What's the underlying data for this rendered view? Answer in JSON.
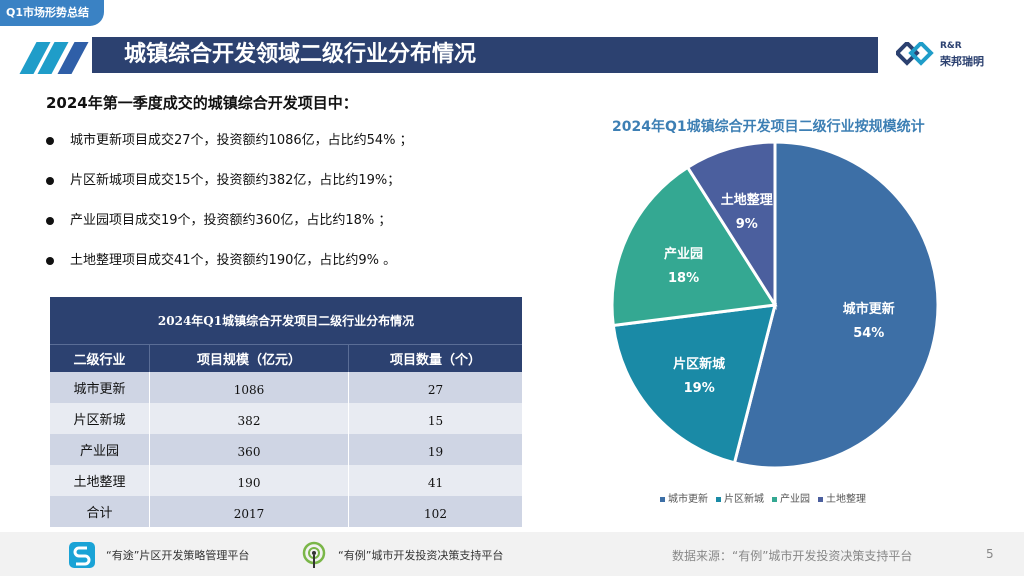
{
  "header": {
    "tab_label": "Q1市场形势总结",
    "title": "城镇综合开发领域二级行业分布情况",
    "logo_top": "R&R",
    "logo_bottom": "荣邦瑞明"
  },
  "summary": {
    "heading": "2024年第一季度成交的城镇综合开发项目中：",
    "bullets": [
      "城市更新项目成交27个，投资额约1086亿，占比约54% ；",
      "片区新城项目成交15个，投资额约382亿，占比约19%；",
      "产业园项目成交19个，投资额约360亿，占比约18% ；",
      "土地整理项目成交41个，投资额约190亿，占比约9% 。"
    ]
  },
  "table": {
    "caption": "2024年Q1城镇综合开发项目二级行业分布情况",
    "headers": [
      "二级行业",
      "项目规模（亿元）",
      "项目数量（个）"
    ],
    "rows": [
      [
        "城市更新",
        "1086",
        "27"
      ],
      [
        "片区新城",
        "382",
        "15"
      ],
      [
        "产业园",
        "360",
        "19"
      ],
      [
        "土地整理",
        "190",
        "41"
      ],
      [
        "合计",
        "2017",
        "102"
      ]
    ]
  },
  "chart_data": {
    "type": "pie",
    "title": "2024年Q1城镇综合开发项目二级行业按规模统计",
    "categories": [
      "城市更新",
      "片区新城",
      "产业园",
      "土地整理"
    ],
    "values": [
      54,
      19,
      18,
      9
    ],
    "labels": [
      "54%",
      "19%",
      "18%",
      "9%"
    ],
    "colors": [
      "#3d6fa6",
      "#1a8aa6",
      "#34a892",
      "#4b5f9e"
    ],
    "legend_position": "bottom"
  },
  "footer": {
    "platform_1": "“有途”片区开发策略管理平台",
    "platform_2": "“有例”城市开发投资决策支持平台",
    "source": "数据来源：“有例”城市开发投资决策支持平台",
    "page": "5"
  }
}
